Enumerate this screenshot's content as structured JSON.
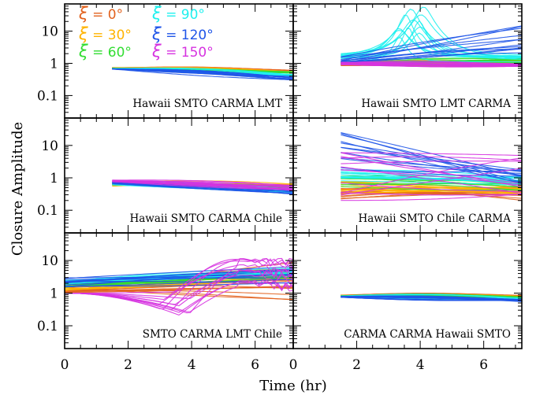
{
  "figure": {
    "ylabel": "Closure Amplitude",
    "xlabel": "Time (hr)"
  },
  "chart_data": {
    "type": "line",
    "x_unit": "hr",
    "xlim_left": [
      0,
      7.2
    ],
    "xlim_right": [
      0,
      7.2
    ],
    "xticks": [
      0,
      2,
      4,
      6
    ],
    "ylim": [
      0.02,
      70
    ],
    "yscale": "log",
    "yticks": [
      {
        "v": 10,
        "label": "10"
      },
      {
        "v": 1,
        "label": "1"
      },
      {
        "v": 0.1,
        "label": "0.1"
      }
    ],
    "legend": {
      "placement": "top-left of upper-left panel",
      "symbol": "ξ",
      "entries": [
        {
          "label": "= 0°",
          "color": "#e2621e"
        },
        {
          "label": "= 30°",
          "color": "#ffb300"
        },
        {
          "label": "= 60°",
          "color": "#33dd33"
        },
        {
          "label": "= 90°",
          "color": "#1ef0ee"
        },
        {
          "label": "= 120°",
          "color": "#1f55e8"
        },
        {
          "label": "= 150°",
          "color": "#d633e0"
        }
      ]
    },
    "panels": [
      {
        "label": "Hawaii  SMTO  CARMA  LMT",
        "x_range": [
          1.5,
          7.2
        ],
        "series_ranges": [
          {
            "orientation": "0°",
            "start": [
              0.7,
              0.74
            ],
            "end": [
              0.55,
              0.62
            ]
          },
          {
            "orientation": "30°",
            "start": [
              0.69,
              0.73
            ],
            "end": [
              0.52,
              0.58
            ]
          },
          {
            "orientation": "60°",
            "start": [
              0.68,
              0.72
            ],
            "end": [
              0.48,
              0.55
            ]
          },
          {
            "orientation": "90°",
            "start": [
              0.66,
              0.7
            ],
            "end": [
              0.38,
              0.46
            ]
          },
          {
            "orientation": "120°",
            "start": [
              0.65,
              0.69
            ],
            "end": [
              0.3,
              0.4
            ]
          }
        ]
      },
      {
        "label": "Hawaii  SMTO  LMT  CARMA",
        "x_range": [
          1.5,
          7.2
        ],
        "series_ranges": [
          {
            "orientation": "0°",
            "start": [
              0.8,
              1.0
            ],
            "end": [
              0.8,
              1.1
            ]
          },
          {
            "orientation": "30°",
            "start": [
              0.85,
              1.1
            ],
            "end": [
              0.9,
              1.2
            ]
          },
          {
            "orientation": "60°",
            "start": [
              0.9,
              1.2
            ],
            "end": [
              0.9,
              1.5
            ]
          },
          {
            "orientation": "90°",
            "peak_time": 3.8,
            "peak_value": [
              3,
              60
            ]
          },
          {
            "orientation": "120°",
            "start": [
              1.0,
              1.6
            ],
            "end": [
              2,
              20
            ]
          },
          {
            "orientation": "150°",
            "start": [
              0.9,
              1.1
            ],
            "end": [
              0.8,
              1.0
            ]
          }
        ]
      },
      {
        "label": "Hawaii  SMTO  CARMA  Chile",
        "x_range": [
          1.5,
          7.2
        ],
        "series_ranges": [
          {
            "orientation": "30°",
            "start": [
              0.55,
              0.7
            ],
            "end": [
              0.5,
              0.65
            ]
          },
          {
            "orientation": "60°",
            "start": [
              0.6,
              0.72
            ],
            "end": [
              0.4,
              0.55
            ]
          },
          {
            "orientation": "90°",
            "start": [
              0.6,
              0.75
            ],
            "end": [
              0.35,
              0.5
            ]
          },
          {
            "orientation": "120°",
            "start": [
              0.65,
              0.78
            ],
            "end": [
              0.3,
              0.45
            ]
          },
          {
            "orientation": "150°",
            "start": [
              0.75,
              0.85
            ],
            "end": [
              0.4,
              0.6
            ]
          }
        ]
      },
      {
        "label": "Hawaii  SMTO  Chile  CARMA",
        "x_range": [
          1.5,
          7.2
        ],
        "series_ranges": [
          {
            "orientation": "0°",
            "start": [
              0.2,
              0.5
            ],
            "end": [
              0.2,
              0.5
            ]
          },
          {
            "orientation": "30°",
            "start": [
              0.3,
              0.8
            ],
            "end": [
              0.3,
              0.6
            ]
          },
          {
            "orientation": "60°",
            "start": [
              0.5,
              1.2
            ],
            "end": [
              0.4,
              0.9
            ]
          },
          {
            "orientation": "90°",
            "start": [
              0.8,
              2.5
            ],
            "end": [
              0.6,
              1.2
            ]
          },
          {
            "orientation": "120°",
            "start": [
              1.5,
              30
            ],
            "end": [
              0.6,
              2.0
            ]
          },
          {
            "orientation": "150°",
            "start": [
              0.2,
              20
            ],
            "end": [
              0.3,
              8
            ]
          }
        ]
      },
      {
        "label": "SMTO  CARMA  LMT  Chile",
        "x_range": [
          0,
          7.2
        ],
        "series_ranges": [
          {
            "orientation": "0°",
            "start": [
              1.0,
              1.6
            ],
            "end": [
              0.3,
              13
            ]
          },
          {
            "orientation": "30°",
            "start": [
              1.2,
              1.8
            ],
            "end": [
              2.5,
              6
            ]
          },
          {
            "orientation": "60°",
            "start": [
              1.5,
              2.0
            ],
            "end": [
              3,
              5
            ]
          },
          {
            "orientation": "90°",
            "start": [
              1.8,
              2.5
            ],
            "end": [
              3,
              6
            ]
          },
          {
            "orientation": "120°",
            "start": [
              1.5,
              3.0
            ],
            "end": [
              2,
              8
            ]
          },
          {
            "orientation": "150°",
            "min_value": 0.12,
            "min_time": 3.4,
            "max_value": 12
          }
        ]
      },
      {
        "label": "CARMA  CARMA  Hawaii  SMTO",
        "x_range": [
          1.5,
          7.2
        ],
        "series_ranges": [
          {
            "orientation": "0°",
            "start": [
              0.82,
              0.88
            ],
            "end": [
              0.8,
              0.86
            ]
          },
          {
            "orientation": "30°",
            "start": [
              0.8,
              0.86
            ],
            "end": [
              0.75,
              0.82
            ]
          },
          {
            "orientation": "60°",
            "start": [
              0.78,
              0.84
            ],
            "end": [
              0.7,
              0.78
            ]
          },
          {
            "orientation": "90°",
            "start": [
              0.76,
              0.82
            ],
            "end": [
              0.62,
              0.72
            ]
          },
          {
            "orientation": "120°",
            "start": [
              0.74,
              0.8
            ],
            "end": [
              0.55,
              0.65
            ]
          }
        ]
      }
    ]
  }
}
